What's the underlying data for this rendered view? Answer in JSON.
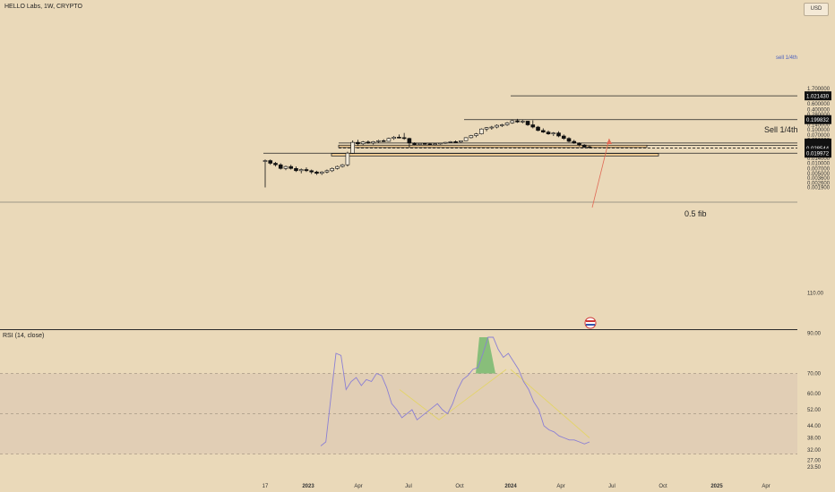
{
  "header": {
    "title": "HELLO Labs, 1W, CRYPTO",
    "currency": "USD"
  },
  "price_axis": {
    "ticks": [
      "1.700000",
      "1.200000",
      "0.850000",
      "0.600000",
      "0.400000",
      "0.280000",
      "0.140000",
      "0.100000",
      "0.070000",
      "0.050000",
      "0.014000",
      "0.010000",
      "0.007000",
      "0.005000",
      "0.003600",
      "0.002600",
      "0.001900"
    ],
    "badges": [
      "1.021430",
      "0.199832",
      "0.040104",
      "0.034351",
      "0.028544",
      "0.019972"
    ]
  },
  "rsi": {
    "title": "RSI (14, close)",
    "ticks": [
      "110.00",
      "90.00",
      "70.00",
      "60.00",
      "52.00",
      "44.00",
      "38.00",
      "32.00",
      "27.00",
      "23.50"
    ],
    "color": "#8b7fd4"
  },
  "time_axis": {
    "labels": [
      "17",
      "2023",
      "Apr",
      "Jul",
      "Oct",
      "2024",
      "Apr",
      "Jul",
      "Oct",
      "2025",
      "Apr"
    ]
  },
  "annotations": {
    "sell_small": "sell 1/4th",
    "sell_main": "Sell 1/4th",
    "fib": "0.5 fib"
  },
  "colors": {
    "background": "#ead9b9",
    "zone_fill": "#f5cf94",
    "zone_stroke": "#2a2a2a",
    "arrow": "#e06a56",
    "trendline": "#e3d46a",
    "rsi_band": "#d9c4b3",
    "overbought_fill": "#6fb76a"
  },
  "chart_data": {
    "type": "candlestick",
    "symbol": "HELLO Labs",
    "interval": "1W",
    "yscale": "log",
    "ohlc": [
      [
        0.012,
        0.013,
        0.0019,
        0.012
      ],
      [
        0.012,
        0.013,
        0.009,
        0.01
      ],
      [
        0.01,
        0.011,
        0.008,
        0.009
      ],
      [
        0.009,
        0.01,
        0.0065,
        0.007
      ],
      [
        0.007,
        0.0085,
        0.0062,
        0.008
      ],
      [
        0.008,
        0.009,
        0.0065,
        0.007
      ],
      [
        0.007,
        0.008,
        0.0055,
        0.006
      ],
      [
        0.006,
        0.007,
        0.005,
        0.0065
      ],
      [
        0.0065,
        0.0075,
        0.0055,
        0.006
      ],
      [
        0.006,
        0.0065,
        0.0048,
        0.0055
      ],
      [
        0.0055,
        0.006,
        0.0045,
        0.005
      ],
      [
        0.005,
        0.0058,
        0.0045,
        0.0055
      ],
      [
        0.0055,
        0.0065,
        0.005,
        0.006
      ],
      [
        0.006,
        0.0075,
        0.0055,
        0.007
      ],
      [
        0.007,
        0.0085,
        0.0065,
        0.008
      ],
      [
        0.008,
        0.0095,
        0.0075,
        0.009
      ],
      [
        0.009,
        0.022,
        0.008,
        0.02
      ],
      [
        0.02,
        0.048,
        0.019,
        0.042
      ],
      [
        0.042,
        0.05,
        0.033,
        0.038
      ],
      [
        0.038,
        0.046,
        0.034,
        0.043
      ],
      [
        0.043,
        0.048,
        0.038,
        0.04
      ],
      [
        0.04,
        0.046,
        0.036,
        0.044
      ],
      [
        0.044,
        0.05,
        0.041,
        0.047
      ],
      [
        0.047,
        0.052,
        0.043,
        0.045
      ],
      [
        0.045,
        0.058,
        0.044,
        0.055
      ],
      [
        0.055,
        0.065,
        0.05,
        0.06
      ],
      [
        0.06,
        0.072,
        0.055,
        0.058
      ],
      [
        0.058,
        0.08,
        0.05,
        0.055
      ],
      [
        0.055,
        0.058,
        0.03,
        0.04
      ],
      [
        0.04,
        0.042,
        0.034,
        0.036
      ],
      [
        0.036,
        0.04,
        0.034,
        0.039
      ],
      [
        0.039,
        0.041,
        0.036,
        0.038
      ],
      [
        0.038,
        0.04,
        0.035,
        0.036
      ],
      [
        0.036,
        0.039,
        0.034,
        0.038
      ],
      [
        0.038,
        0.041,
        0.036,
        0.04
      ],
      [
        0.04,
        0.043,
        0.038,
        0.042
      ],
      [
        0.042,
        0.046,
        0.04,
        0.044
      ],
      [
        0.044,
        0.048,
        0.042,
        0.043
      ],
      [
        0.043,
        0.048,
        0.041,
        0.047
      ],
      [
        0.047,
        0.06,
        0.046,
        0.058
      ],
      [
        0.058,
        0.07,
        0.055,
        0.067
      ],
      [
        0.067,
        0.08,
        0.06,
        0.075
      ],
      [
        0.075,
        0.11,
        0.072,
        0.105
      ],
      [
        0.105,
        0.12,
        0.09,
        0.115
      ],
      [
        0.115,
        0.13,
        0.1,
        0.12
      ],
      [
        0.12,
        0.145,
        0.11,
        0.135
      ],
      [
        0.135,
        0.15,
        0.12,
        0.14
      ],
      [
        0.14,
        0.17,
        0.13,
        0.16
      ],
      [
        0.16,
        0.2,
        0.15,
        0.185
      ],
      [
        0.185,
        0.21,
        0.16,
        0.17
      ],
      [
        0.17,
        0.195,
        0.155,
        0.18
      ],
      [
        0.18,
        0.185,
        0.13,
        0.14
      ],
      [
        0.14,
        0.19,
        0.11,
        0.12
      ],
      [
        0.12,
        0.13,
        0.09,
        0.095
      ],
      [
        0.095,
        0.11,
        0.08,
        0.085
      ],
      [
        0.085,
        0.095,
        0.07,
        0.075
      ],
      [
        0.075,
        0.085,
        0.065,
        0.08
      ],
      [
        0.08,
        0.09,
        0.06,
        0.065
      ],
      [
        0.065,
        0.072,
        0.05,
        0.055
      ],
      [
        0.055,
        0.06,
        0.042,
        0.045
      ],
      [
        0.045,
        0.05,
        0.038,
        0.04
      ],
      [
        0.04,
        0.042,
        0.032,
        0.035
      ],
      [
        0.035,
        0.037,
        0.03,
        0.031
      ],
      [
        0.031,
        0.033,
        0.028,
        0.029
      ]
    ],
    "levels": [
      1.02143,
      0.199832,
      0.040104,
      0.034351,
      0.028544,
      0.019972
    ],
    "zones": [
      [
        0.0295,
        0.0345
      ],
      [
        0.0165,
        0.0195
      ]
    ],
    "rsi_series": [
      34,
      36,
      58,
      80,
      79,
      62,
      66,
      68,
      64,
      67,
      66,
      70,
      69,
      63,
      55,
      52,
      48,
      50,
      52,
      47,
      49,
      51,
      53,
      55,
      52,
      50,
      55,
      62,
      67,
      69,
      72,
      73,
      80,
      88,
      88,
      82,
      78,
      80,
      76,
      72,
      66,
      62,
      56,
      52,
      44,
      42,
      41,
      39,
      38,
      37,
      37,
      36,
      35,
      36
    ],
    "rsi_bands": [
      30,
      50,
      70
    ]
  }
}
